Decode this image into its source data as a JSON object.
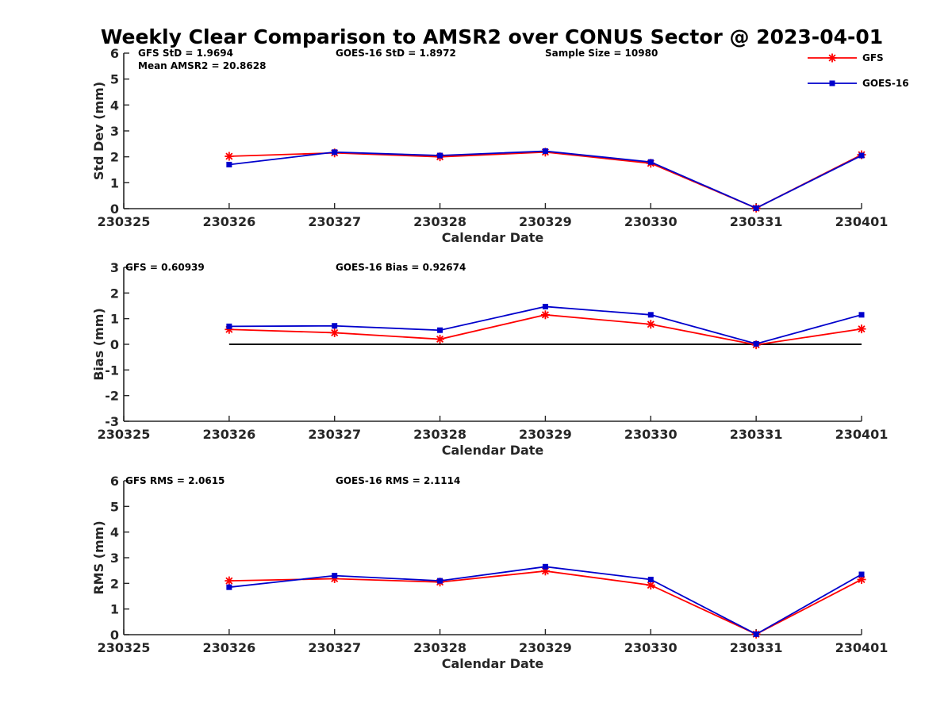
{
  "title": "Weekly Clear Comparison to AMSR2 over CONUS Sector @ 2023-04-01",
  "legend": {
    "placement": "top-right",
    "entries": [
      {
        "name": "GFS",
        "color": "#ff0000",
        "marker": "star"
      },
      {
        "name": "GOES-16",
        "color": "#0000cc",
        "marker": "square"
      }
    ]
  },
  "chart_data": [
    {
      "type": "line",
      "title": "",
      "xlabel": "Calendar Date",
      "ylabel": "Std Dev (mm)",
      "categories": [
        "230325",
        "230326",
        "230327",
        "230328",
        "230329",
        "230330",
        "230331",
        "230401"
      ],
      "ylim": [
        0,
        6
      ],
      "yticks": [
        "0",
        "1",
        "2",
        "3",
        "4",
        "5",
        "6"
      ],
      "grid": false,
      "zero_line": false,
      "annotations": [
        "GFS StD = 1.9694",
        "GOES-16 StD = 1.8972",
        "Sample Size = 10980",
        "Mean AMSR2 = 20.8628"
      ],
      "series": [
        {
          "name": "GFS",
          "color": "#ff0000",
          "marker": "star",
          "values": [
            null,
            2.02,
            2.15,
            2.0,
            2.18,
            1.75,
            0.02,
            2.08
          ]
        },
        {
          "name": "GOES-16",
          "color": "#0000cc",
          "marker": "square",
          "values": [
            null,
            1.7,
            2.18,
            2.05,
            2.22,
            1.8,
            0.02,
            2.05
          ]
        }
      ]
    },
    {
      "type": "line",
      "title": "",
      "xlabel": "Calendar Date",
      "ylabel": "Bias (mm)",
      "categories": [
        "230325",
        "230326",
        "230327",
        "230328",
        "230329",
        "230330",
        "230331",
        "230401"
      ],
      "ylim": [
        -3,
        3
      ],
      "yticks": [
        "-3",
        "-2",
        "-1",
        "0",
        "1",
        "2",
        "3"
      ],
      "grid": false,
      "zero_line": true,
      "annotations": [
        "GFS = 0.60939",
        "GOES-16 Bias  = 0.92674"
      ],
      "series": [
        {
          "name": "GFS",
          "color": "#ff0000",
          "marker": "star",
          "values": [
            null,
            0.58,
            0.45,
            0.2,
            1.15,
            0.78,
            -0.02,
            0.6
          ]
        },
        {
          "name": "GOES-16",
          "color": "#0000cc",
          "marker": "square",
          "values": [
            null,
            0.7,
            0.72,
            0.55,
            1.47,
            1.15,
            0.02,
            1.15
          ]
        }
      ]
    },
    {
      "type": "line",
      "title": "",
      "xlabel": "Calendar Date",
      "ylabel": "RMS (mm)",
      "categories": [
        "230325",
        "230326",
        "230327",
        "230328",
        "230329",
        "230330",
        "230331",
        "230401"
      ],
      "ylim": [
        0,
        6
      ],
      "yticks": [
        "0",
        "1",
        "2",
        "3",
        "4",
        "5",
        "6"
      ],
      "grid": false,
      "zero_line": false,
      "annotations": [
        "GFS RMS = 2.0615",
        "GOES-16 RMS = 2.1114"
      ],
      "series": [
        {
          "name": "GFS",
          "color": "#ff0000",
          "marker": "star",
          "values": [
            null,
            2.1,
            2.18,
            2.05,
            2.48,
            1.93,
            0.02,
            2.15
          ]
        },
        {
          "name": "GOES-16",
          "color": "#0000cc",
          "marker": "square",
          "values": [
            null,
            1.85,
            2.3,
            2.1,
            2.65,
            2.15,
            0.02,
            2.35
          ]
        }
      ]
    }
  ]
}
